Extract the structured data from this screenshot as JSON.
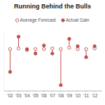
{
  "chart_data": {
    "type": "dumbbell",
    "title": "Running Behind the Bulls",
    "x": [
      2002,
      2003,
      2004,
      2005,
      2006,
      2007,
      2008,
      2009,
      2010,
      2011,
      2012
    ],
    "series": [
      {
        "name": "Average Forecast",
        "color": "#c0504d",
        "marker": "open-circle",
        "values": [
          9,
          10,
          8,
          9,
          9,
          10,
          9,
          11,
          9,
          9,
          10
        ]
      },
      {
        "name": "Actual Gain",
        "color": "#c0504d",
        "marker": "circle",
        "values": [
          -22,
          26,
          9,
          3,
          14,
          3,
          -40,
          23,
          13,
          -2,
          13
        ]
      }
    ],
    "color": "#c0504d",
    "xlim": [
      2001.3,
      2012.9
    ],
    "xticks": [
      {
        "value": 2002,
        "label": "'02"
      },
      {
        "value": 2003,
        "label": "'03"
      },
      {
        "value": 2004,
        "label": "'04"
      },
      {
        "value": 2005,
        "label": "'05"
      },
      {
        "value": 2006,
        "label": "'06"
      },
      {
        "value": 2007,
        "label": "'07"
      },
      {
        "value": 2008,
        "label": "'08"
      },
      {
        "value": 2009,
        "label": "'09"
      },
      {
        "value": 2010,
        "label": "'10"
      },
      {
        "value": 2011,
        "label": "'11"
      },
      {
        "value": 2012,
        "label": "'12"
      }
    ],
    "ylim": [
      -48,
      34
    ],
    "tick_labels": "x",
    "legend": "top"
  }
}
